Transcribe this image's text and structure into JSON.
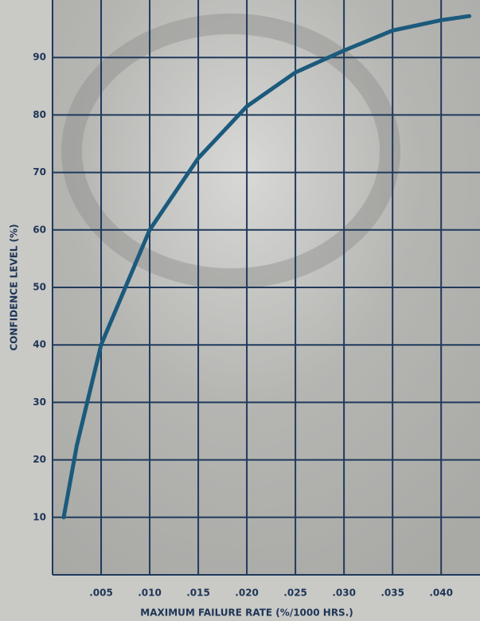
{
  "chart_data": {
    "type": "line",
    "x_label": "MAXIMUM FAILURE RATE (%/1000 HRS.)",
    "y_label": "CONFIDENCE LEVEL (%)",
    "x": [
      0.00115,
      0.0025,
      0.005,
      0.0075,
      0.01,
      0.015,
      0.02,
      0.025,
      0.03,
      0.035,
      0.04,
      0.0429
    ],
    "values": [
      10,
      22.5,
      40,
      50,
      60,
      72.5,
      81.5,
      87.4,
      91.2,
      94.7,
      96.5,
      97.2
    ],
    "color": "#1b5a7c",
    "xlim": [
      0,
      0.044
    ],
    "ylim": [
      0,
      100
    ],
    "xticks": [
      {
        "value": 0.005,
        "label": ".005"
      },
      {
        "value": 0.01,
        "label": ".010"
      },
      {
        "value": 0.015,
        "label": ".015"
      },
      {
        "value": 0.02,
        "label": ".020"
      },
      {
        "value": 0.025,
        "label": ".025"
      },
      {
        "value": 0.03,
        "label": ".030"
      },
      {
        "value": 0.035,
        "label": ".035"
      },
      {
        "value": 0.04,
        "label": ".040"
      }
    ],
    "yticks": [
      10,
      20,
      30,
      40,
      50,
      60,
      70,
      80,
      90
    ],
    "grid": true
  }
}
